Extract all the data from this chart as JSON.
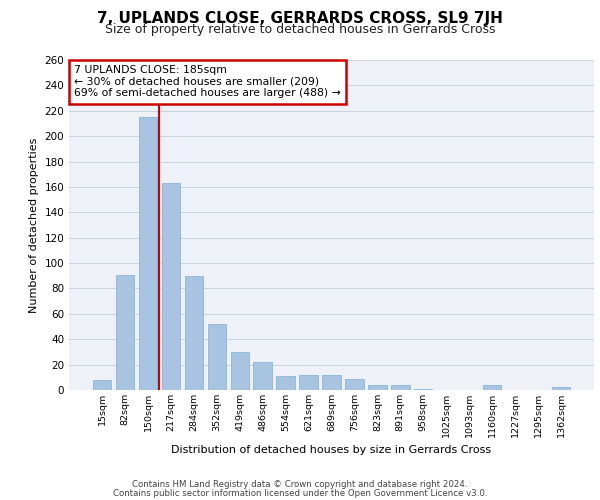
{
  "title": "7, UPLANDS CLOSE, GERRARDS CROSS, SL9 7JH",
  "subtitle": "Size of property relative to detached houses in Gerrards Cross",
  "xlabel": "Distribution of detached houses by size in Gerrards Cross",
  "ylabel": "Number of detached properties",
  "categories": [
    "15sqm",
    "82sqm",
    "150sqm",
    "217sqm",
    "284sqm",
    "352sqm",
    "419sqm",
    "486sqm",
    "554sqm",
    "621sqm",
    "689sqm",
    "756sqm",
    "823sqm",
    "891sqm",
    "958sqm",
    "1025sqm",
    "1093sqm",
    "1160sqm",
    "1227sqm",
    "1295sqm",
    "1362sqm"
  ],
  "values": [
    8,
    91,
    215,
    163,
    90,
    52,
    30,
    22,
    11,
    12,
    12,
    9,
    4,
    4,
    1,
    0,
    0,
    4,
    0,
    0,
    2
  ],
  "bar_color": "#a8c4e0",
  "bar_edgecolor": "#7aafd4",
  "vline_color": "#cc0000",
  "annotation_text": "7 UPLANDS CLOSE: 185sqm\n← 30% of detached houses are smaller (209)\n69% of semi-detached houses are larger (488) →",
  "annotation_box_color": "#ffffff",
  "annotation_box_edgecolor": "#cc0000",
  "ylim": [
    0,
    260
  ],
  "yticks": [
    0,
    20,
    40,
    60,
    80,
    100,
    120,
    140,
    160,
    180,
    200,
    220,
    240,
    260
  ],
  "grid_color": "#c8d4e3",
  "background_color": "#eef2f8",
  "footer_line1": "Contains HM Land Registry data © Crown copyright and database right 2024.",
  "footer_line2": "Contains public sector information licensed under the Open Government Licence v3.0.",
  "title_fontsize": 11,
  "subtitle_fontsize": 9,
  "bar_width": 0.8
}
